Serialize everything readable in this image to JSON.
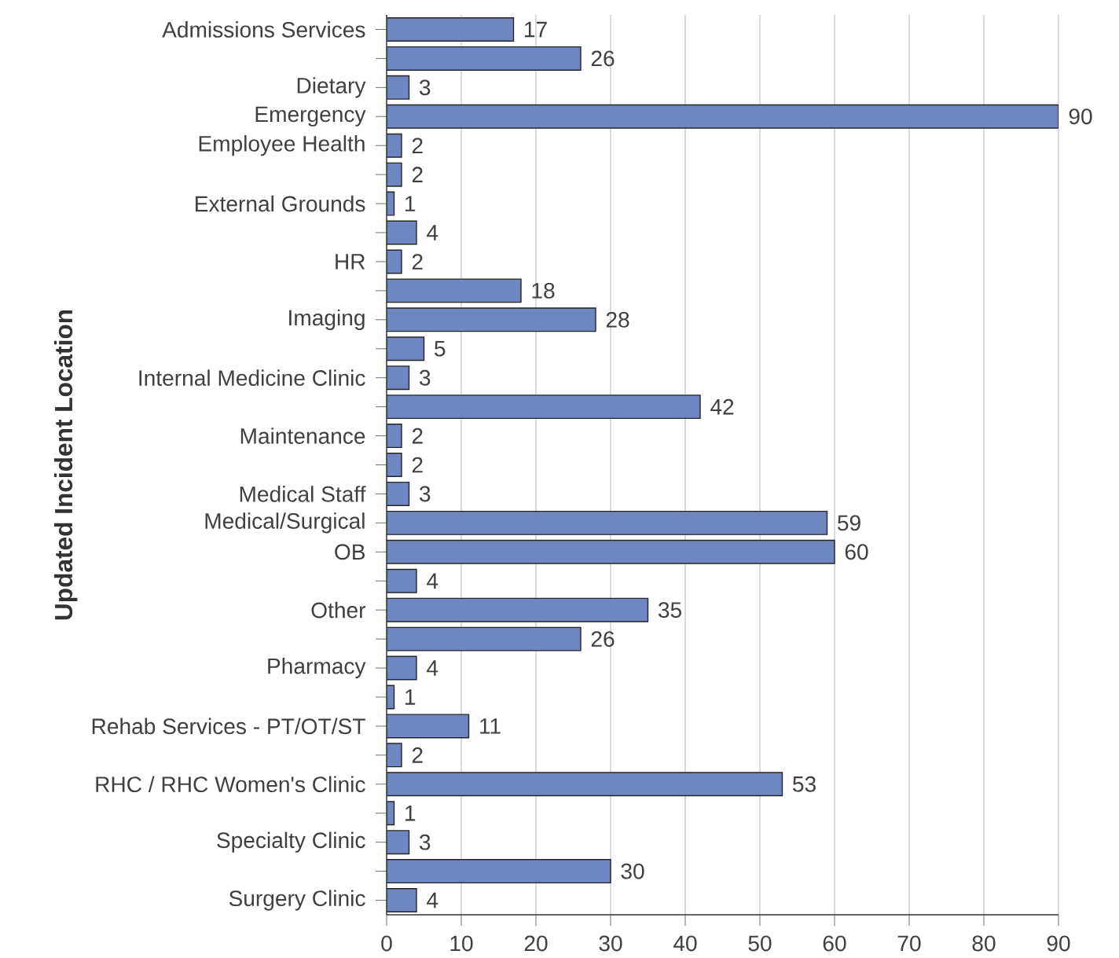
{
  "chart_data": {
    "type": "bar",
    "orientation": "horizontal",
    "ylabel": "Updated Incident Location",
    "categories": [
      "Admissions Services",
      null,
      "Dietary",
      "Emergency",
      "Employee Health",
      null,
      "External Grounds",
      null,
      "HR",
      null,
      "Imaging",
      null,
      "Internal Medicine Clinic",
      null,
      "Maintenance",
      null,
      "Medical Staff",
      "Medical/Surgical",
      "OB",
      null,
      "Other",
      null,
      "Pharmacy",
      null,
      "Rehab Services - PT/OT/ST",
      null,
      "RHC / RHC Women's Clinic",
      null,
      "Specialty Clinic",
      null,
      "Surgery Clinic"
    ],
    "values": [
      17,
      26,
      3,
      90,
      2,
      2,
      1,
      4,
      2,
      18,
      28,
      5,
      3,
      42,
      2,
      2,
      3,
      59,
      60,
      4,
      35,
      26,
      4,
      1,
      11,
      2,
      53,
      1,
      3,
      30,
      4
    ],
    "color": "#6f86c0",
    "xlim": [
      0,
      90
    ],
    "xticks": [
      0,
      10,
      20,
      30,
      40,
      50,
      60,
      70,
      80,
      90
    ],
    "grid": "x",
    "data_labels": true
  }
}
